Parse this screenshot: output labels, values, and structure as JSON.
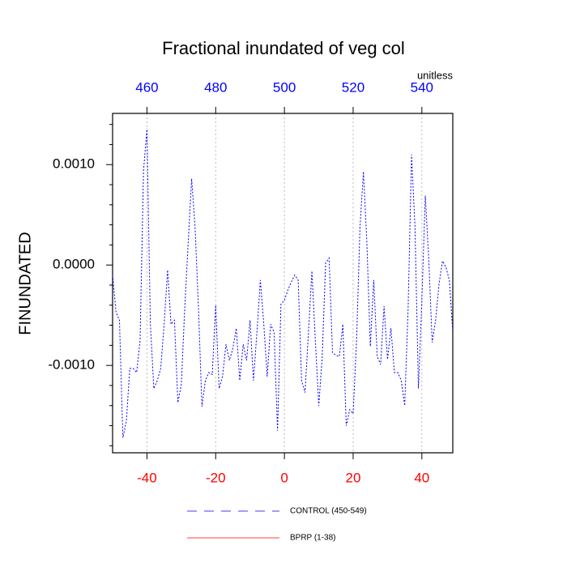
{
  "chart_data": {
    "type": "line",
    "title": "Fractional inundated of veg col",
    "y_label": "FINUNDATED",
    "x2_unit_label": "unitless",
    "x": [
      -50,
      -49,
      -48,
      -47,
      -46,
      -45,
      -44,
      -43,
      -42,
      -41,
      -40,
      -39,
      -38,
      -37,
      -36,
      -35,
      -34,
      -33,
      -32,
      -31,
      -30,
      -29,
      -28,
      -27,
      -26,
      -25,
      -24,
      -23,
      -22,
      -21,
      -20,
      -19,
      -18,
      -17,
      -16,
      -15,
      -14,
      -13,
      -12,
      -11,
      -10,
      -9,
      -8,
      -7,
      -6,
      -5,
      -4,
      -3,
      -2,
      -1,
      0,
      1,
      2,
      3,
      4,
      5,
      6,
      7,
      8,
      9,
      10,
      11,
      12,
      13,
      14,
      15,
      16,
      17,
      18,
      19,
      20,
      21,
      22,
      23,
      24,
      25,
      26,
      27,
      28,
      29,
      30,
      31,
      32,
      33,
      34,
      35,
      36,
      37,
      38,
      39,
      40,
      41,
      42,
      43,
      44,
      45,
      46,
      47,
      48,
      49
    ],
    "series": [
      {
        "name": "CONTROL (450-549)",
        "color": "#0000ff",
        "dash": true,
        "values": [
          -0.0001,
          -0.00047,
          -0.00055,
          -0.00172,
          -0.00156,
          -0.00103,
          -0.00103,
          -0.00107,
          -0.00075,
          0.00094,
          0.00135,
          -0.00059,
          -0.00123,
          -0.00115,
          -0.00103,
          -0.00059,
          -5e-05,
          -0.00059,
          -0.00055,
          -0.00137,
          -0.00119,
          -0.00043,
          0.00022,
          0.00086,
          0.00038,
          -0.00043,
          -0.00141,
          -0.00115,
          -0.00107,
          -0.00109,
          -0.0004,
          -0.00123,
          -0.00111,
          -0.00079,
          -0.00095,
          -0.00083,
          -0.00063,
          -0.00115,
          -0.00079,
          -0.00095,
          -0.00055,
          -0.00115,
          -0.00067,
          -0.00015,
          -0.00059,
          -0.00111,
          -0.00059,
          -0.00067,
          -0.00165,
          -0.00039,
          -0.00035,
          -0.00025,
          -0.00017,
          -0.0001,
          -0.00015,
          -0.00115,
          -0.00127,
          -0.00067,
          -6e-05,
          -0.00075,
          -0.0014,
          -0.00091,
          2e-05,
          7e-05,
          -0.00087,
          -0.0009,
          -0.00091,
          -0.00059,
          -0.0016,
          -0.00144,
          -0.00148,
          -0.00075,
          0.00038,
          0.00093,
          0.00022,
          -0.00081,
          -0.00015,
          -0.00091,
          -0.00099,
          -0.00041,
          -0.00094,
          -0.00063,
          -0.00107,
          -0.00107,
          -0.00115,
          -0.0014,
          -0.00043,
          0.0011,
          0.00038,
          -0.00123,
          -0.00035,
          0.00069,
          6e-05,
          -0.00077,
          -0.00055,
          -0.00019,
          4e-05,
          -2e-05,
          -0.00015,
          -0.00067
        ]
      },
      {
        "name": "BPRP (1-38)",
        "color": "#ff0000",
        "dash": false
      }
    ],
    "xlim": [
      -50,
      49
    ],
    "xticks": [
      -40,
      -20,
      0,
      20,
      40
    ],
    "xtick_color": "#ff0000",
    "x2lim": [
      450,
      549
    ],
    "x2ticks": [
      460,
      480,
      500,
      520,
      540
    ],
    "x2tick_color": "#0000ff",
    "ylim": [
      -0.00187,
      0.00151
    ],
    "yticks": [
      {
        "value": -0.001,
        "label": "-0.0010"
      },
      {
        "value": 0,
        "label": "0.0000"
      },
      {
        "value": 0.001,
        "label": "0.0010"
      }
    ],
    "yminorticks": [
      -0.0018,
      -0.0016,
      -0.0014,
      -0.0012,
      -0.0008,
      -0.0006,
      -0.0004,
      -0.0002,
      0.0002,
      0.0004,
      0.0006,
      0.0008,
      0.0012,
      0.0014
    ],
    "grid": true,
    "legend": "bottom"
  }
}
